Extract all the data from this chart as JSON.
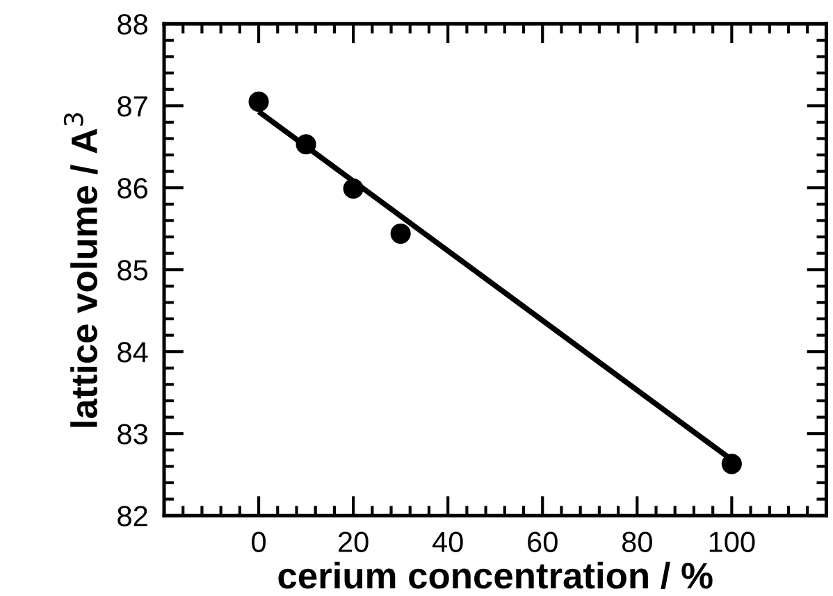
{
  "chart_data": {
    "type": "scatter",
    "xlabel": "cerium concentration / %",
    "ylabel": "lattice volume / A$^{3}$",
    "xlim": [
      -20,
      120
    ],
    "ylim": [
      82,
      88
    ],
    "xticks": [
      0,
      20,
      40,
      60,
      80,
      100
    ],
    "yticks": [
      82,
      83,
      84,
      85,
      86,
      87,
      88
    ],
    "grid": false,
    "legend": false,
    "series": [
      {
        "color": "#000000",
        "marker": "circle",
        "x": [
          0,
          10,
          20,
          30,
          100
        ],
        "values": [
          87.05,
          86.53,
          85.99,
          85.44,
          82.63
        ]
      },
      {
        "type": "line",
        "color": "#000000",
        "marker": "none",
        "line_style": "solid",
        "x": [
          0,
          100
        ],
        "values": [
          86.93,
          82.68
        ]
      }
    ]
  }
}
